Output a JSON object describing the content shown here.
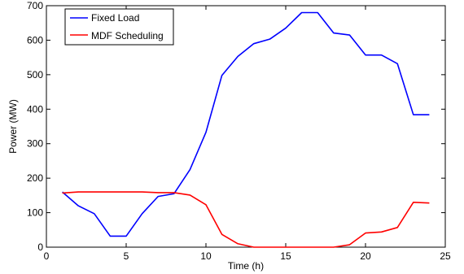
{
  "chart_data": {
    "type": "line",
    "title": "",
    "xlabel": "Time (h)",
    "ylabel": "Power (MW)",
    "xlim": [
      0,
      25
    ],
    "ylim": [
      0,
      700
    ],
    "xticks": [
      0,
      5,
      10,
      15,
      20,
      25
    ],
    "yticks": [
      0,
      100,
      200,
      300,
      400,
      500,
      600,
      700
    ],
    "grid": false,
    "legend_position": "top-left",
    "x": [
      1,
      2,
      3,
      4,
      5,
      6,
      7,
      8,
      9,
      10,
      11,
      12,
      13,
      14,
      15,
      16,
      17,
      18,
      19,
      20,
      21,
      22,
      23,
      24
    ],
    "series": [
      {
        "name": "Fixed Load",
        "color": "#0000ff",
        "values": [
          160,
          120,
          97,
          32,
          32,
          97,
          147,
          155,
          225,
          333,
          498,
          553,
          590,
          603,
          635,
          680,
          680,
          621,
          615,
          557,
          557,
          532,
          384,
          384
        ]
      },
      {
        "name": "MDF Scheduling",
        "color": "#ff0000",
        "values": [
          157,
          160,
          160,
          160,
          160,
          160,
          158,
          158,
          151,
          123,
          37,
          10,
          0,
          0,
          0,
          0,
          0,
          0,
          7,
          41,
          44,
          57,
          130,
          128
        ]
      }
    ]
  }
}
